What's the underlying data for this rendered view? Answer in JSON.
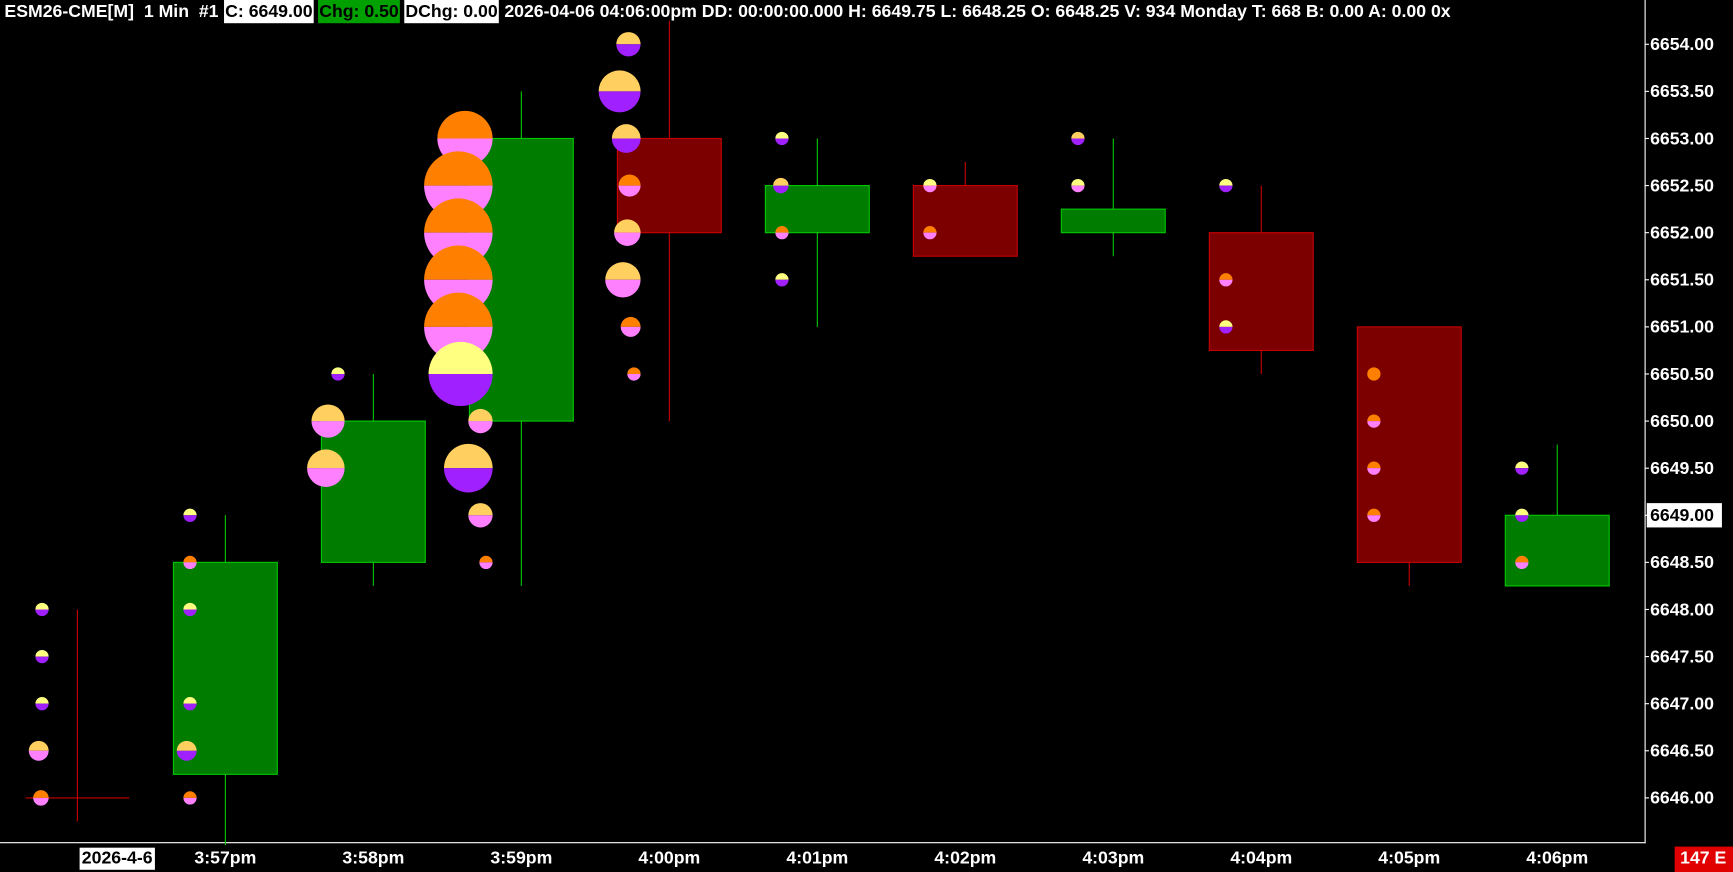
{
  "header": {
    "symbol": "ESM26-CME[M]  1 Min  #1",
    "close": "C: 6649.00",
    "change": "Chg: 0.50",
    "daily_change": "DChg: 0.00",
    "info": "2026-04-06 04:06:00pm DD: 00:00:00.000 H: 6649.75 L: 6648.25 O: 6648.25 V: 934 Monday T: 668 B: 0.00 A: 0.00 0x"
  },
  "status": "147 E",
  "chart_data": {
    "type": "candlestick",
    "categories": [
      "2026-4-6",
      "3:57pm",
      "3:58pm",
      "3:59pm",
      "4:00pm",
      "4:01pm",
      "4:02pm",
      "4:03pm",
      "4:04pm",
      "4:05pm",
      "4:06pm"
    ],
    "open": [
      6646.0,
      6646.25,
      6648.5,
      6650.0,
      6653.0,
      6652.0,
      6652.5,
      6652.0,
      6652.0,
      6651.0,
      6648.25
    ],
    "high": [
      6648.0,
      6649.0,
      6650.5,
      6653.5,
      6654.25,
      6653.0,
      6652.75,
      6653.0,
      6652.5,
      6651.0,
      6649.75
    ],
    "low": [
      6645.75,
      6645.5,
      6648.25,
      6648.25,
      6650.0,
      6651.0,
      6651.75,
      6651.75,
      6650.5,
      6648.25,
      6648.25
    ],
    "close": [
      6646.0,
      6648.5,
      6650.0,
      6653.0,
      6652.0,
      6652.5,
      6651.75,
      6652.25,
      6650.75,
      6648.5,
      6649.0
    ],
    "up_color": "#007c00",
    "up_line": "#00c800",
    "down_color": "#7c0000",
    "down_line": "#c80000",
    "price_label": "6649.00",
    "ylim": [
      6645.53,
      6654.47
    ],
    "yticks": [
      {
        "value": 6646.0,
        "label": "6646.00"
      },
      {
        "value": 6646.5,
        "label": "6646.50"
      },
      {
        "value": 6647.0,
        "label": "6647.00"
      },
      {
        "value": 6647.5,
        "label": "6647.50"
      },
      {
        "value": 6648.0,
        "label": "6648.00"
      },
      {
        "value": 6648.5,
        "label": "6648.50"
      },
      {
        "value": 6649.0,
        "label": "6649.00"
      },
      {
        "value": 6649.5,
        "label": "6649.50"
      },
      {
        "value": 6650.0,
        "label": "6650.00"
      },
      {
        "value": 6650.5,
        "label": "6650.50"
      },
      {
        "value": 6651.0,
        "label": "6651.00"
      },
      {
        "value": 6651.5,
        "label": "6651.50"
      },
      {
        "value": 6652.0,
        "label": "6652.00"
      },
      {
        "value": 6652.5,
        "label": "6652.50"
      },
      {
        "value": 6653.0,
        "label": "6653.00"
      },
      {
        "value": 6653.5,
        "label": "6653.50"
      },
      {
        "value": 6654.0,
        "label": "6654.00"
      }
    ],
    "bubbles": [
      {
        "prices": [
          6648.0,
          6647.5,
          6647.0,
          6646.5,
          6646.0
        ],
        "sizes": [
          6,
          6,
          6,
          9,
          7
        ],
        "top_colors": [
          "#ffff80",
          "#ffff80",
          "#ffff80",
          "#ffd060",
          "#ff8000"
        ],
        "bottom_colors": [
          "#a020ff",
          "#a020ff",
          "#a020ff",
          "#ff80ff",
          "#ff80ff"
        ]
      },
      {
        "prices": [
          6649.0,
          6648.5,
          6648.0,
          6647.0,
          6646.5,
          6646.0
        ],
        "sizes": [
          6,
          6,
          6,
          6,
          9,
          6
        ],
        "top_colors": [
          "#ffff80",
          "#ff8000",
          "#ffff80",
          "#ffff80",
          "#ffd060",
          "#ff8000"
        ],
        "bottom_colors": [
          "#a020ff",
          "#ff80ff",
          "#a020ff",
          "#a020ff",
          "#a020ff",
          "#ff80ff"
        ]
      },
      {
        "prices": [
          6650.5,
          6650.0,
          6649.5
        ],
        "sizes": [
          6,
          15,
          17
        ],
        "top_colors": [
          "#ffff80",
          "#ffd060",
          "#ffd060"
        ],
        "bottom_colors": [
          "#a020ff",
          "#ff80ff",
          "#ff80ff"
        ]
      },
      {
        "prices": [
          6653.0,
          6652.5,
          6652.0,
          6651.5,
          6651.0,
          6650.5,
          6650.0,
          6649.5,
          6649.0,
          6648.5
        ],
        "sizes": [
          25,
          31,
          31,
          31,
          31,
          29,
          11,
          22,
          11,
          6
        ],
        "top_colors": [
          "#ff8000",
          "#ff8000",
          "#ff8000",
          "#ff8000",
          "#ff8000",
          "#ffff80",
          "#ffd060",
          "#ffd060",
          "#ffd060",
          "#ff8000"
        ],
        "bottom_colors": [
          "#ff80ff",
          "#ff80ff",
          "#ff80ff",
          "#ff80ff",
          "#ff80ff",
          "#a020ff",
          "#ff80ff",
          "#a020ff",
          "#ff80ff",
          "#ff80ff"
        ]
      },
      {
        "prices": [
          6654.0,
          6653.5,
          6653.0,
          6652.5,
          6652.0,
          6651.5,
          6651.0,
          6650.5
        ],
        "sizes": [
          11,
          19,
          13,
          10,
          12,
          16,
          9,
          6
        ],
        "top_colors": [
          "#ffd060",
          "#ffd060",
          "#ffd060",
          "#ff8000",
          "#ffd060",
          "#ffd060",
          "#ff8000",
          "#ff8000"
        ],
        "bottom_colors": [
          "#a020ff",
          "#a020ff",
          "#a020ff",
          "#ff80ff",
          "#ff80ff",
          "#ff80ff",
          "#ff80ff",
          "#ff80ff"
        ]
      },
      {
        "prices": [
          6653.0,
          6652.5,
          6652.0,
          6651.5
        ],
        "sizes": [
          6,
          7,
          6,
          6
        ],
        "top_colors": [
          "#ffff80",
          "#ffd060",
          "#ff8000",
          "#ffff80"
        ],
        "bottom_colors": [
          "#a020ff",
          "#a020ff",
          "#ff80ff",
          "#a020ff"
        ]
      },
      {
        "prices": [
          6652.5,
          6652.0
        ],
        "sizes": [
          6,
          6
        ],
        "top_colors": [
          "#ffff80",
          "#ff8000"
        ],
        "bottom_colors": [
          "#ff80ff",
          "#ff80ff"
        ]
      },
      {
        "prices": [
          6653.0,
          6652.5
        ],
        "sizes": [
          6,
          6
        ],
        "top_colors": [
          "#ffd060",
          "#ffff80"
        ],
        "bottom_colors": [
          "#a020ff",
          "#ff80ff"
        ]
      },
      {
        "prices": [
          6652.5,
          6651.5,
          6651.0
        ],
        "sizes": [
          6,
          6,
          6
        ],
        "top_colors": [
          "#ffff80",
          "#ff8000",
          "#ffff80"
        ],
        "bottom_colors": [
          "#a020ff",
          "#ff80ff",
          "#a020ff"
        ]
      },
      {
        "prices": [
          6650.5,
          6650.0,
          6649.5,
          6649.0
        ],
        "sizes": [
          6,
          6,
          6,
          6
        ],
        "top_colors": [
          "#ff8000",
          "#ff8000",
          "#ff8000",
          "#ff8000"
        ],
        "bottom_colors": [
          "#ff8000",
          "#ff80ff",
          "#ff80ff",
          "#ff80ff"
        ]
      },
      {
        "prices": [
          6649.5,
          6649.0,
          6648.5
        ],
        "sizes": [
          6,
          6,
          6
        ],
        "top_colors": [
          "#ffff80",
          "#ffff80",
          "#ff8000"
        ],
        "bottom_colors": [
          "#a020ff",
          "#a020ff",
          "#ff80ff"
        ]
      }
    ]
  }
}
